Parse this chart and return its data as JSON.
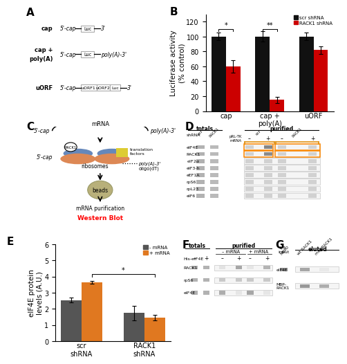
{
  "B": {
    "categories": [
      "cap",
      "cap +\npoly(A)",
      "uORF"
    ],
    "scr_values": [
      100,
      100,
      100
    ],
    "rack1_values": [
      60,
      15,
      82
    ],
    "scr_err": [
      5,
      7,
      5
    ],
    "rack1_err": [
      8,
      4,
      5
    ],
    "ylabel": "Luciferase activity\n(% control)",
    "ylim": [
      0,
      130
    ],
    "yticks": [
      0,
      20,
      40,
      60,
      80,
      100,
      120
    ],
    "scr_color": "#111111",
    "rack1_color": "#cc0000"
  },
  "E": {
    "categories": [
      "scr\nshRNA",
      "RACK1\nshRNA"
    ],
    "minus_values": [
      2.55,
      1.75
    ],
    "plus_values": [
      3.65,
      1.45
    ],
    "minus_err": [
      0.15,
      0.45
    ],
    "plus_err": [
      0.1,
      0.18
    ],
    "ylabel": "eIF4E protein\nlevels (A.U.)",
    "ylim": [
      0,
      6
    ],
    "yticks": [
      0,
      1,
      2,
      3,
      4,
      5,
      6
    ],
    "minus_color": "#555555",
    "plus_color": "#e07820"
  },
  "panel_label_fontsize": 11,
  "tick_fontsize": 7,
  "axis_label_fontsize": 7.5
}
